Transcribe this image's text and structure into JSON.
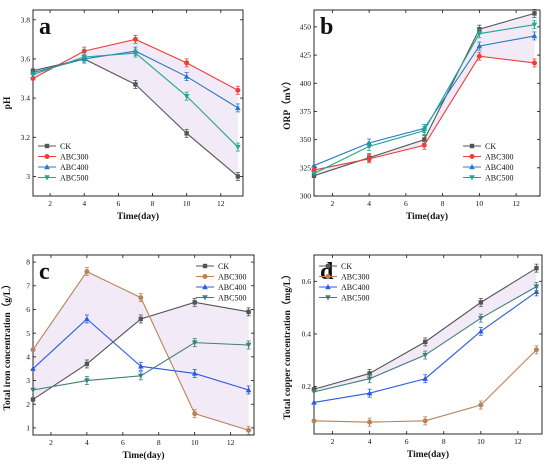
{
  "chart_data": [
    {
      "panel": "a",
      "type": "line",
      "xlabel": "Time(day)",
      "ylabel": "pH",
      "x": [
        1,
        4,
        7,
        10,
        13
      ],
      "xlim": [
        1,
        13.3
      ],
      "ylim": [
        2.9,
        3.85
      ],
      "xticks": [
        2,
        4,
        6,
        8,
        10,
        12
      ],
      "yticks": [
        3.0,
        3.2,
        3.4,
        3.6,
        3.8
      ],
      "legend_position": "bottom-left",
      "grid": false,
      "series": [
        {
          "name": "CK",
          "color": "#555555",
          "marker": "square",
          "values": [
            3.54,
            3.6,
            3.47,
            3.22,
            3.0
          ]
        },
        {
          "name": "ABC300",
          "color": "#e8403a",
          "marker": "circle",
          "values": [
            3.5,
            3.64,
            3.7,
            3.58,
            3.44
          ]
        },
        {
          "name": "ABC400",
          "color": "#2878c8",
          "marker": "triangle-up",
          "values": [
            3.53,
            3.6,
            3.64,
            3.51,
            3.35
          ]
        },
        {
          "name": "ABC500",
          "color": "#1fa88c",
          "marker": "triangle-down",
          "values": [
            3.52,
            3.61,
            3.63,
            3.41,
            3.15
          ]
        }
      ],
      "band": [
        0,
        1
      ]
    },
    {
      "panel": "b",
      "type": "line",
      "xlabel": "Time(day)",
      "ylabel": "ORP（mV）",
      "x": [
        1,
        4,
        7,
        10,
        13
      ],
      "xlim": [
        1,
        13.3
      ],
      "ylim": [
        300,
        465
      ],
      "xticks": [
        2,
        4,
        6,
        8,
        10,
        12
      ],
      "yticks": [
        300,
        325,
        350,
        375,
        400,
        425,
        450
      ],
      "legend_position": "bottom-right",
      "grid": false,
      "series": [
        {
          "name": "CK",
          "color": "#555555",
          "marker": "square",
          "values": [
            318,
            334,
            350,
            448,
            462
          ]
        },
        {
          "name": "ABC300",
          "color": "#e8403a",
          "marker": "circle",
          "values": [
            323,
            333,
            345,
            424,
            418
          ]
        },
        {
          "name": "ABC400",
          "color": "#2878c8",
          "marker": "triangle-up",
          "values": [
            327,
            347,
            360,
            433,
            442
          ]
        },
        {
          "name": "ABC500",
          "color": "#1fa88c",
          "marker": "triangle-down",
          "values": [
            320,
            344,
            358,
            444,
            452
          ]
        }
      ],
      "band": [
        0,
        1
      ]
    },
    {
      "panel": "c",
      "type": "line",
      "xlabel": "Time(day)",
      "ylabel": "Total iron concentration（g/L）",
      "x": [
        1,
        4,
        7,
        10,
        13
      ],
      "xlim": [
        1,
        13.3
      ],
      "ylim": [
        0.7,
        8.3
      ],
      "xticks": [
        2,
        4,
        6,
        8,
        10,
        12
      ],
      "yticks": [
        1,
        2,
        3,
        4,
        5,
        6,
        7,
        8
      ],
      "legend_position": "top-right",
      "grid": false,
      "series": [
        {
          "name": "CK",
          "color": "#555555",
          "marker": "square",
          "values": [
            2.2,
            3.7,
            5.6,
            6.3,
            5.9
          ]
        },
        {
          "name": "ABC300",
          "color": "#b8825a",
          "marker": "circle",
          "values": [
            4.3,
            7.6,
            6.5,
            1.6,
            0.9
          ]
        },
        {
          "name": "ABC400",
          "color": "#2a5be0",
          "marker": "triangle-up",
          "values": [
            3.5,
            5.6,
            3.6,
            3.3,
            2.6
          ]
        },
        {
          "name": "ABC500",
          "color": "#3f7f7a",
          "marker": "triangle-down",
          "values": [
            2.6,
            3.0,
            3.2,
            4.6,
            4.5
          ]
        }
      ],
      "band": [
        0,
        1
      ]
    },
    {
      "panel": "d",
      "type": "line",
      "xlabel": "Time(day)",
      "ylabel": "Total copper concentration（mg/L）",
      "x": [
        1,
        4,
        7,
        10,
        13
      ],
      "xlim": [
        1,
        13.3
      ],
      "ylim": [
        0.02,
        0.7
      ],
      "xticks": [
        2,
        4,
        6,
        8,
        10,
        12
      ],
      "yticks": [
        0.2,
        0.4,
        0.6
      ],
      "legend_position": "top-left",
      "grid": false,
      "series": [
        {
          "name": "CK",
          "color": "#555555",
          "marker": "square",
          "values": [
            0.19,
            0.25,
            0.37,
            0.52,
            0.65
          ]
        },
        {
          "name": "ABC300",
          "color": "#b8825a",
          "marker": "circle",
          "values": [
            0.07,
            0.065,
            0.07,
            0.13,
            0.34
          ]
        },
        {
          "name": "ABC400",
          "color": "#2a5be0",
          "marker": "triangle-up",
          "values": [
            0.14,
            0.175,
            0.23,
            0.41,
            0.56
          ]
        },
        {
          "name": "ABC500",
          "color": "#3f7f7a",
          "marker": "triangle-down",
          "values": [
            0.18,
            0.23,
            0.32,
            0.46,
            0.58
          ]
        }
      ],
      "band": [
        0,
        3
      ]
    }
  ]
}
